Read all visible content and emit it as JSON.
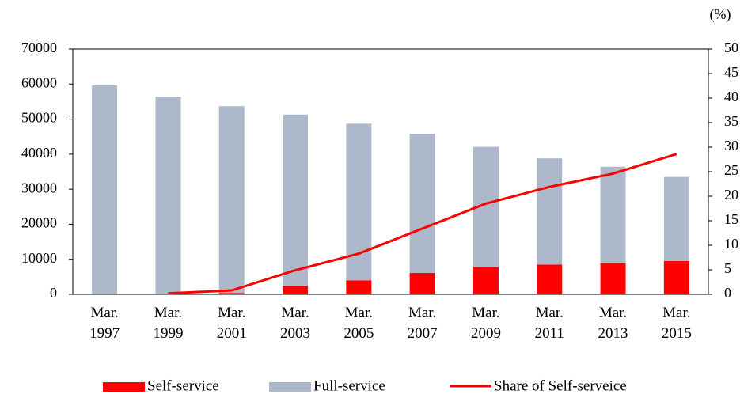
{
  "chart_data": {
    "type": "bar",
    "y2_label": "(%)",
    "categories": [
      "Mar. 1997",
      "Mar. 1999",
      "Mar. 2001",
      "Mar. 2003",
      "Mar. 2005",
      "Mar. 2007",
      "Mar. 2009",
      "Mar. 2011",
      "Mar. 2013",
      "Mar. 2015"
    ],
    "stacked": true,
    "series": [
      {
        "name": "Self-service",
        "type": "bar",
        "color": "#ff0000",
        "values": [
          0,
          100,
          400,
          2500,
          4000,
          6100,
          7800,
          8500,
          8900,
          9500
        ]
      },
      {
        "name": "Full-service",
        "type": "bar",
        "color": "#adb9ca",
        "values": [
          59600,
          56300,
          53300,
          48800,
          44700,
          39700,
          34300,
          30300,
          27500,
          24000
        ]
      },
      {
        "name": "Share of Self-serveice",
        "type": "line",
        "axis": "y2",
        "color": "#ff0000",
        "values": [
          null,
          0.2,
          0.8,
          4.9,
          8.3,
          13.4,
          18.5,
          21.9,
          24.6,
          28.6
        ]
      }
    ],
    "ylim": [
      0,
      70000
    ],
    "yticks": [
      0,
      10000,
      20000,
      30000,
      40000,
      50000,
      60000,
      70000
    ],
    "y2lim": [
      0,
      50
    ],
    "y2ticks": [
      0,
      5,
      10,
      15,
      20,
      25,
      30,
      35,
      40,
      45,
      50
    ],
    "legend": "bottom",
    "grid": false
  }
}
